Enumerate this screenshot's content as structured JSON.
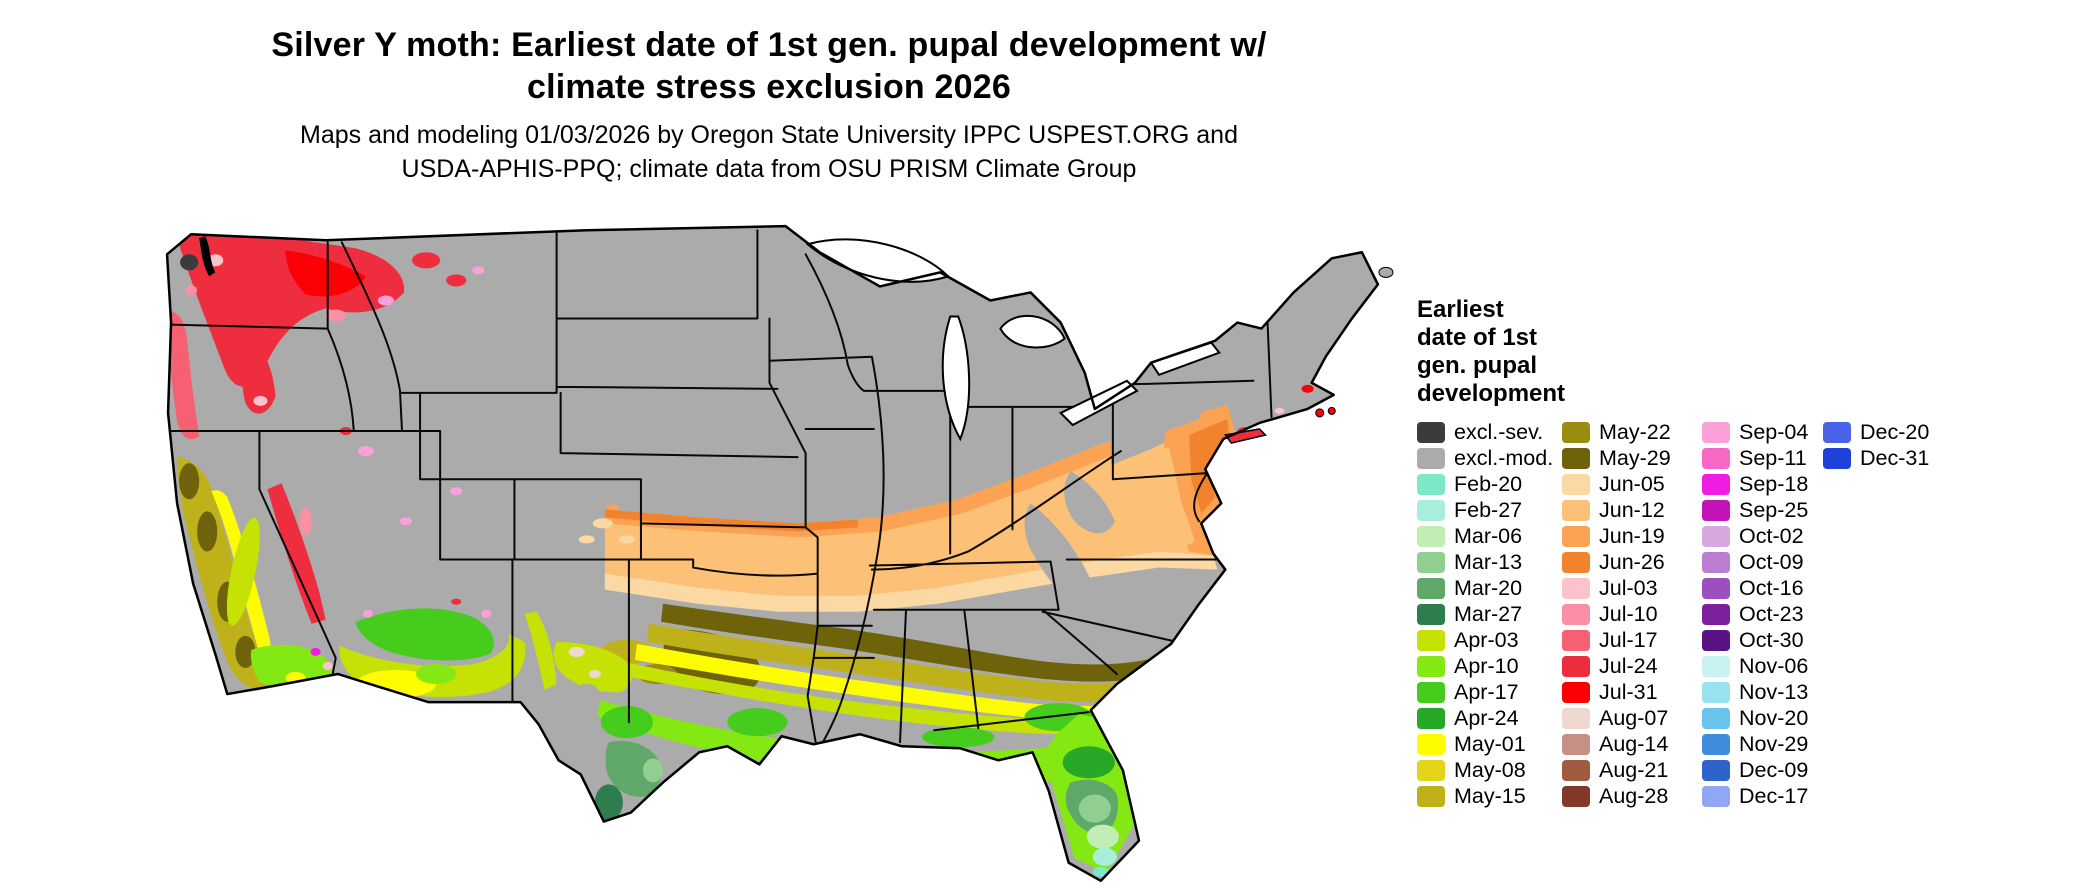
{
  "header": {
    "title": [
      "Silver Y moth: Earliest date of 1st gen. pupal development w/",
      "climate stress exclusion 2026"
    ],
    "subtitle": [
      "Maps and modeling 01/03/2026 by Oregon State University IPPC USPEST.ORG and",
      "USDA-APHIS-PPQ; climate data from OSU PRISM Climate Group"
    ]
  },
  "legend": {
    "title_lines": [
      "Earliest",
      "date of 1st",
      "gen. pupal",
      "development"
    ],
    "columns": [
      [
        {
          "label": "excl.-sev.",
          "color": "#3b3b3b"
        },
        {
          "label": "excl.-mod.",
          "color": "#ababab"
        },
        {
          "label": "Feb-20",
          "color": "#7ce8c8"
        },
        {
          "label": "Feb-27",
          "color": "#a8eedd"
        },
        {
          "label": "Mar-06",
          "color": "#c2edb4"
        },
        {
          "label": "Mar-13",
          "color": "#90cf90"
        },
        {
          "label": "Mar-20",
          "color": "#5fa86a"
        },
        {
          "label": "Mar-27",
          "color": "#2e7d4e"
        },
        {
          "label": "Apr-03",
          "color": "#c6e204"
        },
        {
          "label": "Apr-10",
          "color": "#84e912"
        },
        {
          "label": "Apr-17",
          "color": "#46cc1c"
        },
        {
          "label": "Apr-24",
          "color": "#27a827"
        },
        {
          "label": "May-01",
          "color": "#fdfd00"
        },
        {
          "label": "May-08",
          "color": "#e3d41a"
        },
        {
          "label": "May-15",
          "color": "#bfb11a"
        }
      ],
      [
        {
          "label": "May-22",
          "color": "#998c0e"
        },
        {
          "label": "May-29",
          "color": "#6e630a"
        },
        {
          "label": "Jun-05",
          "color": "#fcd9a3"
        },
        {
          "label": "Jun-12",
          "color": "#fcc077"
        },
        {
          "label": "Jun-19",
          "color": "#fba253"
        },
        {
          "label": "Jun-26",
          "color": "#f1832f"
        },
        {
          "label": "Jul-03",
          "color": "#fdc3cd"
        },
        {
          "label": "Jul-10",
          "color": "#fb8fa5"
        },
        {
          "label": "Jul-17",
          "color": "#f75f72"
        },
        {
          "label": "Jul-24",
          "color": "#ee2e3f"
        },
        {
          "label": "Jul-31",
          "color": "#fc0006"
        },
        {
          "label": "Aug-07",
          "color": "#eed9d0"
        },
        {
          "label": "Aug-14",
          "color": "#c59185"
        },
        {
          "label": "Aug-21",
          "color": "#a05a40"
        },
        {
          "label": "Aug-28",
          "color": "#83392a"
        }
      ],
      [
        {
          "label": "Sep-04",
          "color": "#fba0d8"
        },
        {
          "label": "Sep-11",
          "color": "#f868c6"
        },
        {
          "label": "Sep-18",
          "color": "#f11ce4"
        },
        {
          "label": "Sep-25",
          "color": "#c315b7"
        },
        {
          "label": "Oct-02",
          "color": "#d8a7e0"
        },
        {
          "label": "Oct-09",
          "color": "#bb7ed2"
        },
        {
          "label": "Oct-16",
          "color": "#9c50c0"
        },
        {
          "label": "Oct-23",
          "color": "#7e1f9e"
        },
        {
          "label": "Oct-30",
          "color": "#5a1384"
        },
        {
          "label": "Nov-06",
          "color": "#c8f2f2"
        },
        {
          "label": "Nov-13",
          "color": "#96e2ee"
        },
        {
          "label": "Nov-20",
          "color": "#68c4ec"
        },
        {
          "label": "Nov-29",
          "color": "#3f8cdc"
        },
        {
          "label": "Dec-09",
          "color": "#2f63cc"
        },
        {
          "label": "Dec-17",
          "color": "#90a7f5"
        }
      ],
      [
        {
          "label": "Dec-20",
          "color": "#4a63e9"
        },
        {
          "label": "Dec-31",
          "color": "#1f41d9"
        }
      ]
    ]
  },
  "chart_data": {
    "type": "choropleth-map",
    "region": "Contiguous United States",
    "variable": "Earliest date of 1st gen. pupal development (weekly date classes)",
    "legend_classes": [
      "excl.-sev.",
      "excl.-mod.",
      "Feb-20",
      "Feb-27",
      "Mar-06",
      "Mar-13",
      "Mar-20",
      "Mar-27",
      "Apr-03",
      "Apr-10",
      "Apr-17",
      "Apr-24",
      "May-01",
      "May-08",
      "May-15",
      "May-22",
      "May-29",
      "Jun-05",
      "Jun-12",
      "Jun-19",
      "Jun-26",
      "Jul-03",
      "Jul-10",
      "Jul-17",
      "Jul-24",
      "Jul-31",
      "Aug-07",
      "Aug-14",
      "Aug-21",
      "Aug-28",
      "Sep-04",
      "Sep-11",
      "Sep-18",
      "Sep-25",
      "Oct-02",
      "Oct-09",
      "Oct-16",
      "Oct-23",
      "Oct-30",
      "Nov-06",
      "Nov-13",
      "Nov-20",
      "Nov-29",
      "Dec-09",
      "Dec-17",
      "Dec-20",
      "Dec-31"
    ],
    "pattern": [
      {
        "area": "Northern tier, Great Plains, Rockies, Great Basin, upper Midwest, interior Northeast, Appalachians",
        "class": "excl.-mod."
      },
      {
        "area": "Washington/Oregon Cascades, NE Washington, N Idaho",
        "class": "Jul-17 to Jul-31"
      },
      {
        "area": "Pacific coast ranges WA/OR",
        "class": "Jul-03 to Jul-24"
      },
      {
        "area": "California coast ranges",
        "class": "May-08 to May-29"
      },
      {
        "area": "California Central Valley and S California lowlands",
        "class": "Apr-03 to May-01"
      },
      {
        "area": "Arizona / New Mexico mid elevations",
        "class": "Apr-03 to May-01"
      },
      {
        "area": "Kansas-Missouri-Kentucky-Tennessee-Virginia band",
        "class": "Jun-05 to Jun-26"
      },
      {
        "area": "Mid-Atlantic coastal plain (E PA, NJ, MD, DE)",
        "class": "Jun-19 to Jun-26"
      },
      {
        "area": "N Texas through central Georgia / South Carolina band",
        "class": "May-22 to May-29"
      },
      {
        "area": "Central Texas and inner Gulf states",
        "class": "May-01 to May-15"
      },
      {
        "area": "Gulf coastal plain, S Georgia, N Florida",
        "class": "Apr-03 to Apr-17"
      },
      {
        "area": "South Texas",
        "class": "Mar-13 to Mar-27"
      },
      {
        "area": "Central and South Florida",
        "class": "Feb-20 to Mar-20"
      }
    ]
  }
}
